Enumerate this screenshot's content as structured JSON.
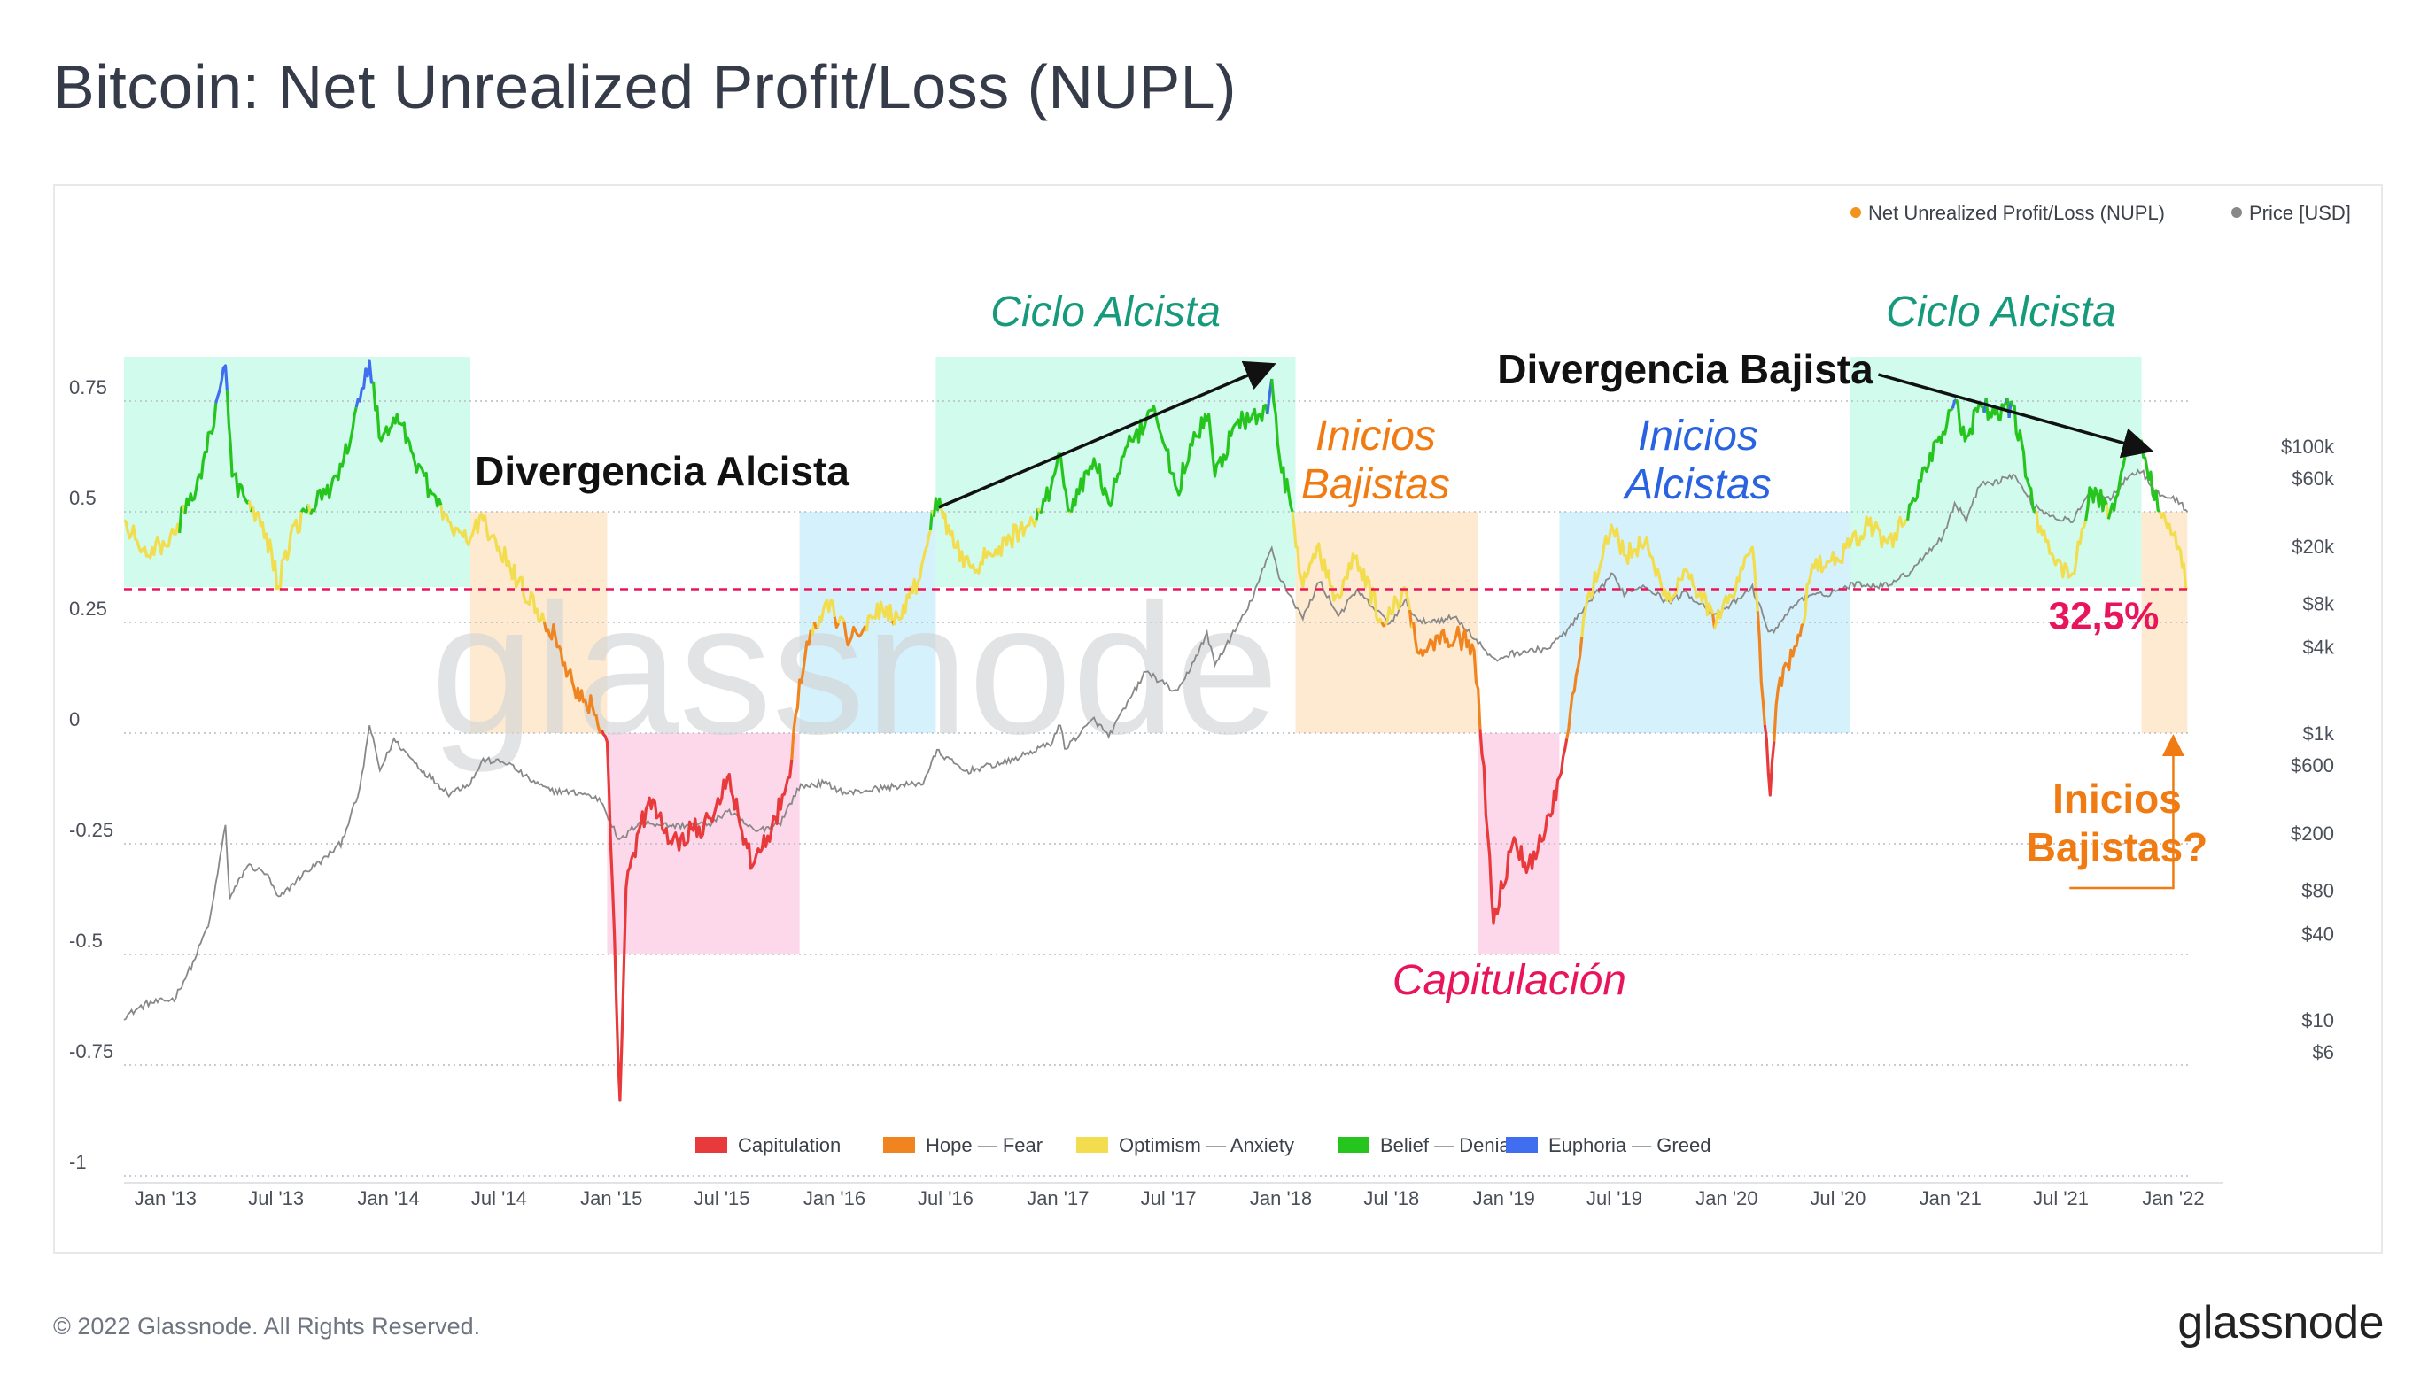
{
  "page": {
    "title": "Bitcoin: Net Unrealized Profit/Loss (NUPL)",
    "copyright": "© 2022 Glassnode. All Rights Reserved.",
    "logo": "glassnode",
    "watermark": "glassnode"
  },
  "chart_data": {
    "type": "line",
    "title": "Bitcoin: Net Unrealized Profit/Loss (NUPL)",
    "legend_top": [
      {
        "name": "Net Unrealized Profit/Loss (NUPL)",
        "color": "#f2931b"
      },
      {
        "name": "Price [USD]",
        "color": "#888888"
      }
    ],
    "legend_position": "top-right",
    "legend_bottom_position": "bottom-center",
    "grid": true,
    "x_ticks": [
      "Jan '13",
      "Jul '13",
      "Jan '14",
      "Jul '14",
      "Jan '15",
      "Jul '15",
      "Jan '16",
      "Jul '16",
      "Jan '17",
      "Jul '17",
      "Jan '18",
      "Jul '18",
      "Jan '19",
      "Jul '19",
      "Jan '20",
      "Jul '20",
      "Jan '21",
      "Jul '21",
      "Jan '22"
    ],
    "x_range": [
      "2012-10-25",
      "2022-01-25"
    ],
    "y_left": {
      "ticks": [
        0.75,
        0.5,
        0.25,
        0,
        -0.25,
        -0.5,
        -0.75,
        -1
      ],
      "tick_labels": [
        "0.75",
        "0.5",
        "0.25",
        "0",
        "-0.25",
        "-0.5",
        "-0.75",
        "-1"
      ],
      "range": [
        -1,
        1
      ]
    },
    "y_right": {
      "scale": "log",
      "tick_values": [
        100000,
        60000,
        20000,
        8000,
        4000,
        1000,
        600,
        200,
        80,
        40,
        10,
        6
      ],
      "tick_labels": [
        "$100k",
        "$60k",
        "$20k",
        "$8k",
        "$4k",
        "$1k",
        "$600",
        "$200",
        "$80",
        "$40",
        "$10",
        "$6"
      ]
    },
    "threshold": {
      "value": 0.325,
      "label": "32,5%",
      "color": "#e8155b"
    },
    "zones": [
      {
        "name": "Capitulation",
        "color": "#e8393b",
        "range": [
          -1,
          0
        ]
      },
      {
        "name": "Hope — Fear",
        "color": "#f0851f",
        "range": [
          0,
          0.25
        ]
      },
      {
        "name": "Optimism — Anxiety",
        "color": "#f1dd4e",
        "range": [
          0.25,
          0.5
        ]
      },
      {
        "name": "Belief — Denial",
        "color": "#25c51d",
        "range": [
          0.5,
          0.75
        ]
      },
      {
        "name": "Euphoria — Greed",
        "color": "#3f6ef0",
        "range": [
          0.75,
          1
        ]
      }
    ],
    "nupl_series": [
      [
        "2012-10-25",
        0.48
      ],
      [
        "2012-12-01",
        0.4
      ],
      [
        "2013-01-15",
        0.45
      ],
      [
        "2013-02-20",
        0.55
      ],
      [
        "2013-03-15",
        0.68
      ],
      [
        "2013-04-09",
        0.83
      ],
      [
        "2013-04-20",
        0.58
      ],
      [
        "2013-05-15",
        0.52
      ],
      [
        "2013-06-15",
        0.45
      ],
      [
        "2013-07-05",
        0.33
      ],
      [
        "2013-07-25",
        0.45
      ],
      [
        "2013-08-20",
        0.5
      ],
      [
        "2013-09-20",
        0.54
      ],
      [
        "2013-10-20",
        0.62
      ],
      [
        "2013-11-15",
        0.75
      ],
      [
        "2013-12-01",
        0.84
      ],
      [
        "2013-12-20",
        0.66
      ],
      [
        "2014-01-15",
        0.72
      ],
      [
        "2014-02-10",
        0.63
      ],
      [
        "2014-03-10",
        0.55
      ],
      [
        "2014-04-15",
        0.46
      ],
      [
        "2014-05-15",
        0.44
      ],
      [
        "2014-06-05",
        0.48
      ],
      [
        "2014-07-01",
        0.42
      ],
      [
        "2014-08-01",
        0.34
      ],
      [
        "2014-09-01",
        0.28
      ],
      [
        "2014-10-01",
        0.22
      ],
      [
        "2014-11-01",
        0.1
      ],
      [
        "2014-12-01",
        0.06
      ],
      [
        "2014-12-25",
        -0.02
      ],
      [
        "2015-01-15",
        -0.83
      ],
      [
        "2015-01-25",
        -0.35
      ],
      [
        "2015-02-15",
        -0.22
      ],
      [
        "2015-03-10",
        -0.15
      ],
      [
        "2015-04-10",
        -0.25
      ],
      [
        "2015-05-15",
        -0.22
      ],
      [
        "2015-06-15",
        -0.2
      ],
      [
        "2015-07-10",
        -0.1
      ],
      [
        "2015-08-20",
        -0.3
      ],
      [
        "2015-09-20",
        -0.22
      ],
      [
        "2015-10-20",
        -0.1
      ],
      [
        "2015-11-05",
        0.12
      ],
      [
        "2015-11-20",
        0.2
      ],
      [
        "2015-12-20",
        0.3
      ],
      [
        "2016-01-20",
        0.22
      ],
      [
        "2016-02-20",
        0.24
      ],
      [
        "2016-03-20",
        0.28
      ],
      [
        "2016-04-20",
        0.26
      ],
      [
        "2016-05-20",
        0.35
      ],
      [
        "2016-06-15",
        0.53
      ],
      [
        "2016-07-15",
        0.42
      ],
      [
        "2016-08-15",
        0.38
      ],
      [
        "2016-09-15",
        0.4
      ],
      [
        "2016-10-15",
        0.44
      ],
      [
        "2016-11-15",
        0.47
      ],
      [
        "2016-12-20",
        0.55
      ],
      [
        "2017-01-05",
        0.63
      ],
      [
        "2017-01-20",
        0.5
      ],
      [
        "2017-03-01",
        0.62
      ],
      [
        "2017-03-25",
        0.52
      ],
      [
        "2017-05-01",
        0.66
      ],
      [
        "2017-06-10",
        0.72
      ],
      [
        "2017-07-15",
        0.55
      ],
      [
        "2017-08-15",
        0.67
      ],
      [
        "2017-09-05",
        0.72
      ],
      [
        "2017-09-15",
        0.58
      ],
      [
        "2017-10-20",
        0.7
      ],
      [
        "2017-12-10",
        0.72
      ],
      [
        "2017-12-17",
        0.8
      ],
      [
        "2017-12-30",
        0.62
      ],
      [
        "2018-01-20",
        0.5
      ],
      [
        "2018-02-06",
        0.33
      ],
      [
        "2018-03-01",
        0.42
      ],
      [
        "2018-04-01",
        0.31
      ],
      [
        "2018-05-05",
        0.4
      ],
      [
        "2018-06-15",
        0.25
      ],
      [
        "2018-07-25",
        0.32
      ],
      [
        "2018-08-15",
        0.18
      ],
      [
        "2018-09-15",
        0.22
      ],
      [
        "2018-10-15",
        0.22
      ],
      [
        "2018-11-10",
        0.2
      ],
      [
        "2018-11-20",
        0.1
      ],
      [
        "2018-12-15",
        -0.43
      ],
      [
        "2019-01-15",
        -0.25
      ],
      [
        "2019-02-10",
        -0.3
      ],
      [
        "2019-03-10",
        -0.22
      ],
      [
        "2019-04-02",
        -0.1
      ],
      [
        "2019-04-20",
        0.05
      ],
      [
        "2019-05-15",
        0.28
      ],
      [
        "2019-06-26",
        0.47
      ],
      [
        "2019-07-20",
        0.4
      ],
      [
        "2019-08-20",
        0.43
      ],
      [
        "2019-09-25",
        0.3
      ],
      [
        "2019-10-26",
        0.37
      ],
      [
        "2019-12-15",
        0.25
      ],
      [
        "2020-01-15",
        0.32
      ],
      [
        "2020-02-12",
        0.42
      ],
      [
        "2020-03-12",
        -0.14
      ],
      [
        "2020-03-25",
        0.1
      ],
      [
        "2020-04-30",
        0.22
      ],
      [
        "2020-05-20",
        0.38
      ],
      [
        "2020-06-20",
        0.39
      ],
      [
        "2020-07-20",
        0.42
      ],
      [
        "2020-08-20",
        0.47
      ],
      [
        "2020-09-20",
        0.43
      ],
      [
        "2020-10-20",
        0.48
      ],
      [
        "2020-11-20",
        0.6
      ],
      [
        "2020-12-20",
        0.68
      ],
      [
        "2021-01-08",
        0.75
      ],
      [
        "2021-01-25",
        0.66
      ],
      [
        "2021-02-20",
        0.74
      ],
      [
        "2021-03-15",
        0.72
      ],
      [
        "2021-04-13",
        0.74
      ],
      [
        "2021-05-19",
        0.5
      ],
      [
        "2021-06-22",
        0.38
      ],
      [
        "2021-07-20",
        0.36
      ],
      [
        "2021-08-20",
        0.55
      ],
      [
        "2021-09-20",
        0.5
      ],
      [
        "2021-10-20",
        0.64
      ],
      [
        "2021-11-10",
        0.66
      ],
      [
        "2021-12-10",
        0.5
      ],
      [
        "2022-01-10",
        0.42
      ],
      [
        "2022-01-24",
        0.325
      ]
    ],
    "price_series": [
      [
        "2012-10-25",
        10.5
      ],
      [
        "2012-12-01",
        13
      ],
      [
        "2013-01-15",
        14
      ],
      [
        "2013-02-15",
        25
      ],
      [
        "2013-03-15",
        50
      ],
      [
        "2013-04-09",
        230
      ],
      [
        "2013-04-16",
        70
      ],
      [
        "2013-05-15",
        120
      ],
      [
        "2013-06-15",
        105
      ],
      [
        "2013-07-05",
        70
      ],
      [
        "2013-08-15",
        105
      ],
      [
        "2013-09-15",
        130
      ],
      [
        "2013-10-15",
        170
      ],
      [
        "2013-11-15",
        400
      ],
      [
        "2013-12-01",
        1140
      ],
      [
        "2013-12-18",
        550
      ],
      [
        "2014-01-10",
        900
      ],
      [
        "2014-02-25",
        550
      ],
      [
        "2014-04-10",
        380
      ],
      [
        "2014-05-15",
        450
      ],
      [
        "2014-06-05",
        650
      ],
      [
        "2014-07-15",
        620
      ],
      [
        "2014-08-18",
        480
      ],
      [
        "2014-09-20",
        400
      ],
      [
        "2014-11-15",
        380
      ],
      [
        "2014-12-15",
        340
      ],
      [
        "2015-01-14",
        175
      ],
      [
        "2015-02-15",
        240
      ],
      [
        "2015-04-15",
        225
      ],
      [
        "2015-06-15",
        235
      ],
      [
        "2015-07-10",
        290
      ],
      [
        "2015-08-25",
        205
      ],
      [
        "2015-10-05",
        240
      ],
      [
        "2015-11-04",
        420
      ],
      [
        "2015-12-15",
        450
      ],
      [
        "2016-01-20",
        380
      ],
      [
        "2016-03-20",
        415
      ],
      [
        "2016-05-25",
        450
      ],
      [
        "2016-06-17",
        750
      ],
      [
        "2016-08-02",
        540
      ],
      [
        "2016-10-15",
        640
      ],
      [
        "2016-12-20",
        850
      ],
      [
        "2017-01-05",
        1150
      ],
      [
        "2017-01-12",
        780
      ],
      [
        "2017-03-01",
        1250
      ],
      [
        "2017-03-25",
        950
      ],
      [
        "2017-05-25",
        2700
      ],
      [
        "2017-07-16",
        1900
      ],
      [
        "2017-09-02",
        4900
      ],
      [
        "2017-09-15",
        3000
      ],
      [
        "2017-11-08",
        7400
      ],
      [
        "2017-12-17",
        19500
      ],
      [
        "2017-12-29",
        12500
      ],
      [
        "2018-02-06",
        6300
      ],
      [
        "2018-03-05",
        11500
      ],
      [
        "2018-04-05",
        6600
      ],
      [
        "2018-05-05",
        9800
      ],
      [
        "2018-06-28",
        5800
      ],
      [
        "2018-07-25",
        8300
      ],
      [
        "2018-08-14",
        5900
      ],
      [
        "2018-10-15",
        6400
      ],
      [
        "2018-11-20",
        4300
      ],
      [
        "2018-12-15",
        3200
      ],
      [
        "2019-01-15",
        3600
      ],
      [
        "2019-03-15",
        3900
      ],
      [
        "2019-04-15",
        5200
      ],
      [
        "2019-05-25",
        8500
      ],
      [
        "2019-06-26",
        12800
      ],
      [
        "2019-07-17",
        9500
      ],
      [
        "2019-08-20",
        10800
      ],
      [
        "2019-09-25",
        8200
      ],
      [
        "2019-10-26",
        9500
      ],
      [
        "2019-12-17",
        6600
      ],
      [
        "2020-02-12",
        10300
      ],
      [
        "2020-03-12",
        4900
      ],
      [
        "2020-04-30",
        8700
      ],
      [
        "2020-06-15",
        9400
      ],
      [
        "2020-07-28",
        11000
      ],
      [
        "2020-09-15",
        10700
      ],
      [
        "2020-10-25",
        13000
      ],
      [
        "2020-11-25",
        18500
      ],
      [
        "2020-12-20",
        23500
      ],
      [
        "2021-01-08",
        40000
      ],
      [
        "2021-01-27",
        31000
      ],
      [
        "2021-02-21",
        57000
      ],
      [
        "2021-03-15",
        56000
      ],
      [
        "2021-04-14",
        63500
      ],
      [
        "2021-05-19",
        38000
      ],
      [
        "2021-06-22",
        31800
      ],
      [
        "2021-07-20",
        30000
      ],
      [
        "2021-08-20",
        49000
      ],
      [
        "2021-09-20",
        43000
      ],
      [
        "2021-10-20",
        64000
      ],
      [
        "2021-11-10",
        67500
      ],
      [
        "2021-12-04",
        47000
      ],
      [
        "2022-01-10",
        41500
      ],
      [
        "2022-01-24",
        35000
      ]
    ],
    "phase_boxes": [
      {
        "start": "2012-10-25",
        "end": "2014-05-15",
        "y_top": 0.85,
        "y_bottom": 0.33,
        "color": "#c9fae9"
      },
      {
        "start": "2014-05-15",
        "end": "2014-12-25",
        "y_top": 0.5,
        "y_bottom": 0.0,
        "color": "#fde6c8"
      },
      {
        "start": "2014-12-25",
        "end": "2015-11-05",
        "y_top": 0.0,
        "y_bottom": -0.5,
        "color": "#fdd0e6"
      },
      {
        "start": "2015-11-05",
        "end": "2016-06-15",
        "y_top": 0.5,
        "y_bottom": 0.0,
        "color": "#cdeefb"
      },
      {
        "start": "2016-06-15",
        "end": "2018-01-25",
        "y_top": 0.85,
        "y_bottom": 0.33,
        "color": "#c9fae9"
      },
      {
        "start": "2018-01-25",
        "end": "2018-11-20",
        "y_top": 0.5,
        "y_bottom": 0.0,
        "color": "#fde6c8"
      },
      {
        "start": "2018-11-20",
        "end": "2019-04-02",
        "y_top": 0.0,
        "y_bottom": -0.5,
        "color": "#fdd0e6"
      },
      {
        "start": "2019-04-02",
        "end": "2020-07-20",
        "y_top": 0.5,
        "y_bottom": 0.0,
        "color": "#cdeefb"
      },
      {
        "start": "2020-07-20",
        "end": "2021-11-10",
        "y_top": 0.85,
        "y_bottom": 0.33,
        "color": "#c9fae9"
      },
      {
        "start": "2021-11-10",
        "end": "2022-01-24",
        "y_top": 0.5,
        "y_bottom": 0.0,
        "color": "#fde6c8"
      }
    ],
    "annotations": [
      {
        "text": "Ciclo Alcista",
        "x": "2017-03-20",
        "y": 0.92,
        "color": "#159a7c",
        "style": "italic"
      },
      {
        "text": "Ciclo Alcista",
        "x": "2021-03-25",
        "y": 0.92,
        "color": "#159a7c",
        "style": "italic"
      },
      {
        "text": "Divergencia Alcista",
        "x": "2015-03-25",
        "y": 0.56,
        "color": "#111111",
        "style": "bold"
      },
      {
        "text": "Divergencia Bajista",
        "x": "2019-10-25",
        "y": 0.79,
        "color": "#111111",
        "style": "bold"
      },
      {
        "text": "Inicios",
        "x": "2018-06-05",
        "y": 0.64,
        "color": "#f07b12",
        "style": "italic"
      },
      {
        "text": "Bajistas",
        "x": "2018-06-05",
        "y": 0.53,
        "color": "#f07b12",
        "style": "italic"
      },
      {
        "text": "Inicios",
        "x": "2019-11-15",
        "y": 0.64,
        "color": "#2a63e0",
        "style": "italic"
      },
      {
        "text": "Alcistas",
        "x": "2019-11-15",
        "y": 0.53,
        "color": "#2a63e0",
        "style": "italic"
      },
      {
        "text": "Capitulación",
        "x": "2019-01-10",
        "y": -0.59,
        "color": "#e8155b",
        "style": "italic"
      },
      {
        "text": "Inicios",
        "x": "2021-10-01",
        "y": -0.18,
        "color": "#f07b12",
        "style": "bold"
      },
      {
        "text": "Bajistas?",
        "x": "2021-10-01",
        "y": -0.29,
        "color": "#f07b12",
        "style": "bold"
      }
    ],
    "arrows": [
      {
        "from": [
          "2016-06-20",
          0.51
        ],
        "to": [
          "2017-12-15",
          0.83
        ],
        "color": "#111111"
      },
      {
        "from": [
          "2020-09-05",
          0.81
        ],
        "to": [
          "2021-11-20",
          0.64
        ],
        "color": "#111111"
      }
    ],
    "callout_arrow": {
      "from": [
        "2021-07-15",
        -0.35
      ],
      "corner": [
        "2022-01-01",
        -0.35
      ],
      "to": [
        "2022-01-01",
        0.0
      ],
      "color": "#f07b12"
    }
  }
}
